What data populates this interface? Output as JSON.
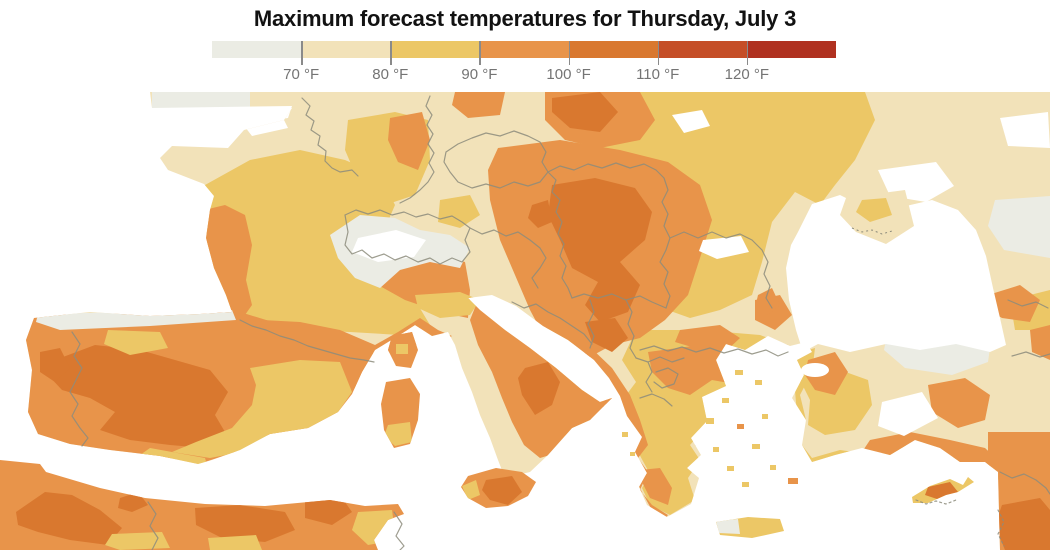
{
  "title": "Maximum forecast temperatures for Thursday, July 3",
  "legend": {
    "tick_labels": [
      "70 °F",
      "80 °F",
      "90 °F",
      "100 °F",
      "110 °F",
      "120 °F"
    ],
    "segments": [
      {
        "range": "below 70 °F",
        "color": "#EBECE4"
      },
      {
        "range": "70-80 °F",
        "color": "#F2E2B9"
      },
      {
        "range": "80-90 °F",
        "color": "#ECC766"
      },
      {
        "range": "90-100 °F",
        "color": "#E8944A"
      },
      {
        "range": "100-110 °F",
        "color": "#D9782F"
      },
      {
        "range": "110-120 °F",
        "color": "#C54E27"
      },
      {
        "range": "above 120 °F",
        "color": "#B03120"
      }
    ],
    "tick_color": "#8A8A8A",
    "label_color": "#747474"
  },
  "map": {
    "description": "Forecast maximum temperatures over Europe, the Mediterranean and North Africa",
    "sea_color": "#FFFFFF",
    "border_color": "#8D8C7C",
    "palette": {
      "p0": "#FFFFFF",
      "p1": "#EBECE4",
      "p2": "#F2E2B9",
      "p3": "#ECC766",
      "p4": "#E8944A",
      "p5": "#D9782F",
      "p6": "#C54E27",
      "p7": "#B03120"
    }
  }
}
